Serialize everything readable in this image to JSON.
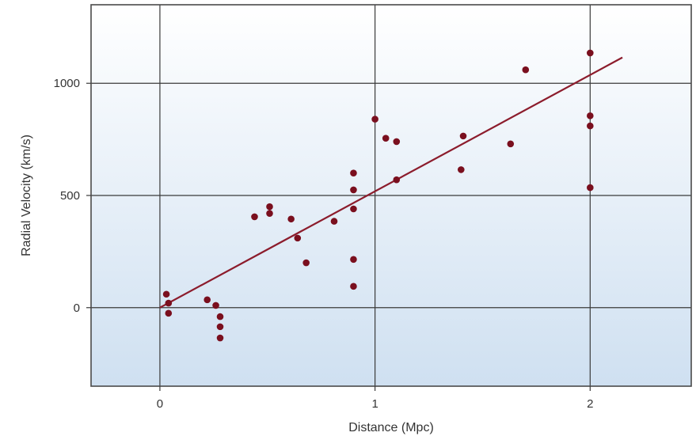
{
  "chart_data": {
    "type": "scatter",
    "title": "",
    "xlabel": "Distance (Mpc)",
    "ylabel": "Radial Velocity (km/s)",
    "xlim": [
      -0.32,
      2.47
    ],
    "ylim": [
      -350,
      1350
    ],
    "x_ticks": [
      0,
      1,
      2
    ],
    "x_tick_labels": [
      "0",
      "1",
      "2"
    ],
    "y_ticks": [
      0,
      500,
      1000
    ],
    "y_tick_labels": [
      "0",
      "500",
      "1000"
    ],
    "grid": true,
    "legend": "none",
    "point_color": "#7a0f1e",
    "line_color": "#8c1c2c",
    "background_gradient": [
      "#ffffff",
      "#cfe0f1"
    ],
    "series": [
      {
        "points": [
          {
            "x": 0.03,
            "y": 60
          },
          {
            "x": 0.04,
            "y": 20
          },
          {
            "x": 0.04,
            "y": -25
          },
          {
            "x": 0.22,
            "y": 35
          },
          {
            "x": 0.26,
            "y": 10
          },
          {
            "x": 0.28,
            "y": -40
          },
          {
            "x": 0.28,
            "y": -85
          },
          {
            "x": 0.28,
            "y": -135
          },
          {
            "x": 0.44,
            "y": 405
          },
          {
            "x": 0.51,
            "y": 420
          },
          {
            "x": 0.51,
            "y": 450
          },
          {
            "x": 0.61,
            "y": 395
          },
          {
            "x": 0.64,
            "y": 310
          },
          {
            "x": 0.68,
            "y": 200
          },
          {
            "x": 0.81,
            "y": 385
          },
          {
            "x": 0.9,
            "y": 600
          },
          {
            "x": 0.9,
            "y": 525
          },
          {
            "x": 0.9,
            "y": 440
          },
          {
            "x": 0.9,
            "y": 215
          },
          {
            "x": 0.9,
            "y": 95
          },
          {
            "x": 1.0,
            "y": 840
          },
          {
            "x": 1.05,
            "y": 755
          },
          {
            "x": 1.1,
            "y": 740
          },
          {
            "x": 1.1,
            "y": 570
          },
          {
            "x": 1.4,
            "y": 615
          },
          {
            "x": 1.41,
            "y": 765
          },
          {
            "x": 1.63,
            "y": 730
          },
          {
            "x": 1.7,
            "y": 1060
          },
          {
            "x": 2.0,
            "y": 1135
          },
          {
            "x": 2.0,
            "y": 855
          },
          {
            "x": 2.0,
            "y": 810
          },
          {
            "x": 2.0,
            "y": 535
          }
        ]
      }
    ],
    "fit_line": {
      "x": [
        0.0,
        2.15
      ],
      "y": [
        0,
        1115
      ]
    }
  }
}
